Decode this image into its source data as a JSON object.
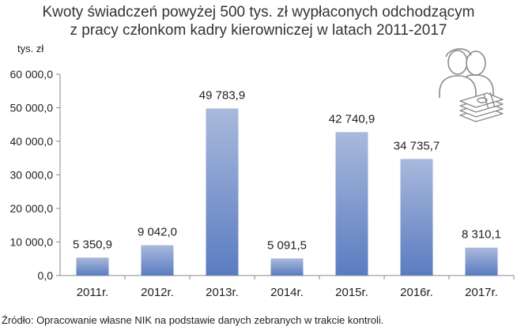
{
  "chart_data": {
    "type": "bar",
    "title": "Kwoty świadczeń powyżej 500 tys. zł wypłaconych odchodzącym\nz pracy członkom kadry kierowniczej w latach 2011-2017",
    "ylabel": "tys. zł",
    "xlabel": "",
    "categories": [
      "2011r.",
      "2012r.",
      "2013r.",
      "2014r.",
      "2015r.",
      "2016r.",
      "2017r."
    ],
    "values": [
      5350.9,
      9042.0,
      49783.9,
      5091.5,
      42740.9,
      34735.7,
      8310.1
    ],
    "value_labels": [
      "5 350,9",
      "9 042,0",
      "49 783,9",
      "5 091,5",
      "42 740,9",
      "34 735,7",
      "8 310,1"
    ],
    "ylim": [
      0,
      60000
    ],
    "y_ticks": [
      0,
      10000,
      20000,
      30000,
      40000,
      50000,
      60000
    ],
    "y_tick_labels": [
      "0,0",
      "10 000,0",
      "20 000,0",
      "30 000,0",
      "40 000,0",
      "50 000,0",
      "60 000,0"
    ],
    "grid": false,
    "legend": "none",
    "bar_color_top": "#a9b9dc",
    "bar_color_bottom": "#5a7cc0"
  },
  "source_note": "Źródło: Opracowanie własne NIK na podstawie danych zebranych w trakcie kontroli.",
  "icons": [
    "people-icon",
    "money-stack-icon"
  ]
}
